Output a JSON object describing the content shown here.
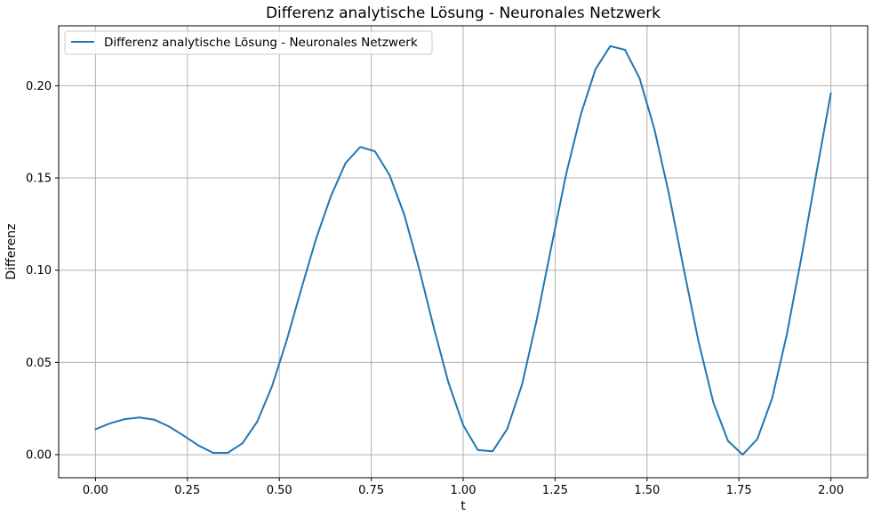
{
  "chart_data": {
    "type": "line",
    "title": "Differenz analytische Lösung - Neuronales Netzwerk",
    "xlabel": "t",
    "ylabel": "Differenz",
    "xlim": [
      -0.1,
      2.1
    ],
    "ylim": [
      -0.0125,
      0.2325
    ],
    "grid": true,
    "legend_position": "top-left",
    "x_ticks": [
      0.0,
      0.25,
      0.5,
      0.75,
      1.0,
      1.25,
      1.5,
      1.75,
      2.0
    ],
    "x_tick_labels": [
      "0.00",
      "0.25",
      "0.50",
      "0.75",
      "1.00",
      "1.25",
      "1.50",
      "1.75",
      "2.00"
    ],
    "y_ticks": [
      0.0,
      0.05,
      0.1,
      0.15,
      0.2
    ],
    "y_tick_labels": [
      "0.00",
      "0.05",
      "0.10",
      "0.15",
      "0.20"
    ],
    "series": [
      {
        "name": "Differenz analytische Lösung - Neuronales Netzwerk",
        "color": "#1f77b4",
        "x": [
          0.0,
          0.04,
          0.08,
          0.12,
          0.16,
          0.2,
          0.24,
          0.28,
          0.32,
          0.36,
          0.4,
          0.44,
          0.48,
          0.52,
          0.56,
          0.6,
          0.64,
          0.68,
          0.72,
          0.76,
          0.8,
          0.84,
          0.88,
          0.92,
          0.96,
          1.0,
          1.04,
          1.08,
          1.12,
          1.16,
          1.2,
          1.24,
          1.28,
          1.32,
          1.36,
          1.4,
          1.44,
          1.48,
          1.52,
          1.56,
          1.6,
          1.64,
          1.68,
          1.72,
          1.76,
          1.8,
          1.84,
          1.88,
          1.92,
          1.96,
          2.0
        ],
        "values": [
          0.0138,
          0.017,
          0.0193,
          0.0202,
          0.019,
          0.0153,
          0.0103,
          0.005,
          0.001,
          0.001,
          0.0062,
          0.018,
          0.037,
          0.062,
          0.09,
          0.117,
          0.14,
          0.158,
          0.1668,
          0.1645,
          0.1515,
          0.13,
          0.101,
          0.069,
          0.039,
          0.016,
          0.0025,
          0.0018,
          0.014,
          0.038,
          0.073,
          0.113,
          0.152,
          0.1845,
          0.209,
          0.2215,
          0.2195,
          0.204,
          0.1765,
          0.141,
          0.1005,
          0.0615,
          0.0285,
          0.0075,
          0.0,
          0.0085,
          0.0305,
          0.065,
          0.107,
          0.152,
          0.196
        ]
      }
    ]
  }
}
